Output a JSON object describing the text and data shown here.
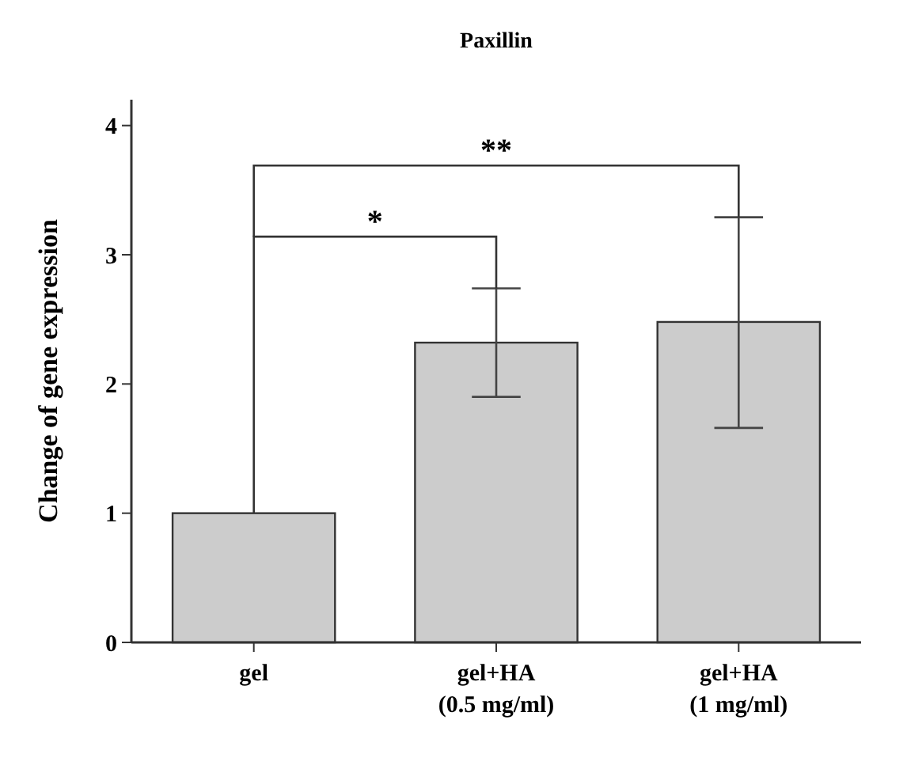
{
  "chart_data": {
    "type": "bar",
    "title": "Paxillin",
    "ylabel": "Change of gene expression",
    "categories": [
      "gel",
      "gel+HA\n(0.5 mg/ml)",
      "gel+HA\n(1 mg/ml)"
    ],
    "values": [
      1,
      2.32,
      2.48
    ],
    "color": "#cccccc",
    "errors": [
      null,
      [
        1.9,
        2.74
      ],
      [
        1.66,
        3.29
      ]
    ],
    "ylim": [
      0,
      4.2
    ],
    "yticks": [
      0,
      1,
      2,
      3,
      4
    ],
    "grid": false,
    "annotations": [
      "*",
      "**"
    ]
  }
}
